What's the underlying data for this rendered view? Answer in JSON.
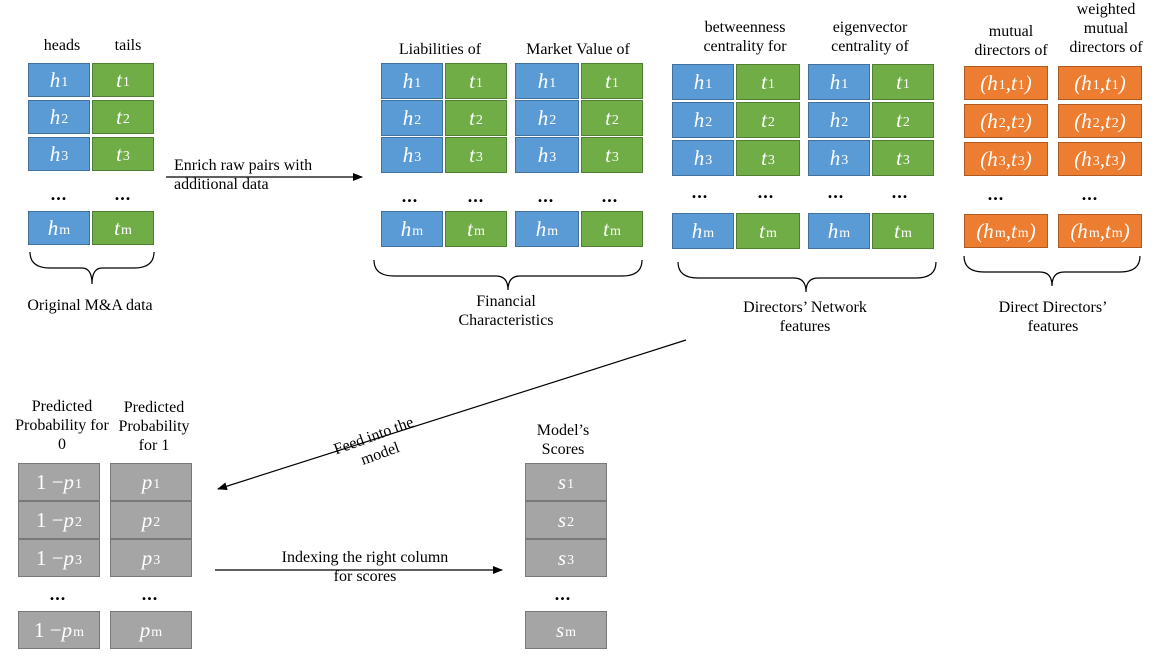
{
  "original": {
    "headers": [
      "heads",
      "tails"
    ],
    "caption": "Original M&A data"
  },
  "enrich_label": "Enrich raw pairs with additional data",
  "financial": {
    "headers": [
      "Liabilities of",
      "Market Value of"
    ],
    "caption": "Financial Characteristics"
  },
  "network": {
    "headers": [
      "betweenness centrality for",
      "eigenvector centrality of"
    ],
    "caption": "Directors’ Network features"
  },
  "direct": {
    "headers": [
      "mutual directors of",
      "weighted mutual directors of"
    ],
    "caption": "Direct Directors’ features"
  },
  "feed_label": "Feed into the model",
  "predicted": {
    "headers": [
      "Predicted Probability for 0",
      "Predicted Probability for 1"
    ]
  },
  "indexing_label": "Indexing the right column for scores",
  "scores": {
    "header": "Model’s Scores"
  },
  "cells": {
    "h": [
      "h",
      "1",
      "2",
      "3",
      "m"
    ],
    "t": [
      "t",
      "1",
      "2",
      "3",
      "m"
    ],
    "one_minus_p": "1 − p",
    "p": "p",
    "s": "s",
    "dots": "..."
  },
  "colors": {
    "heads": "#5b9bd5",
    "tails": "#70ad47",
    "mutual": "#ed7d31",
    "scores": "#a5a5a5"
  }
}
